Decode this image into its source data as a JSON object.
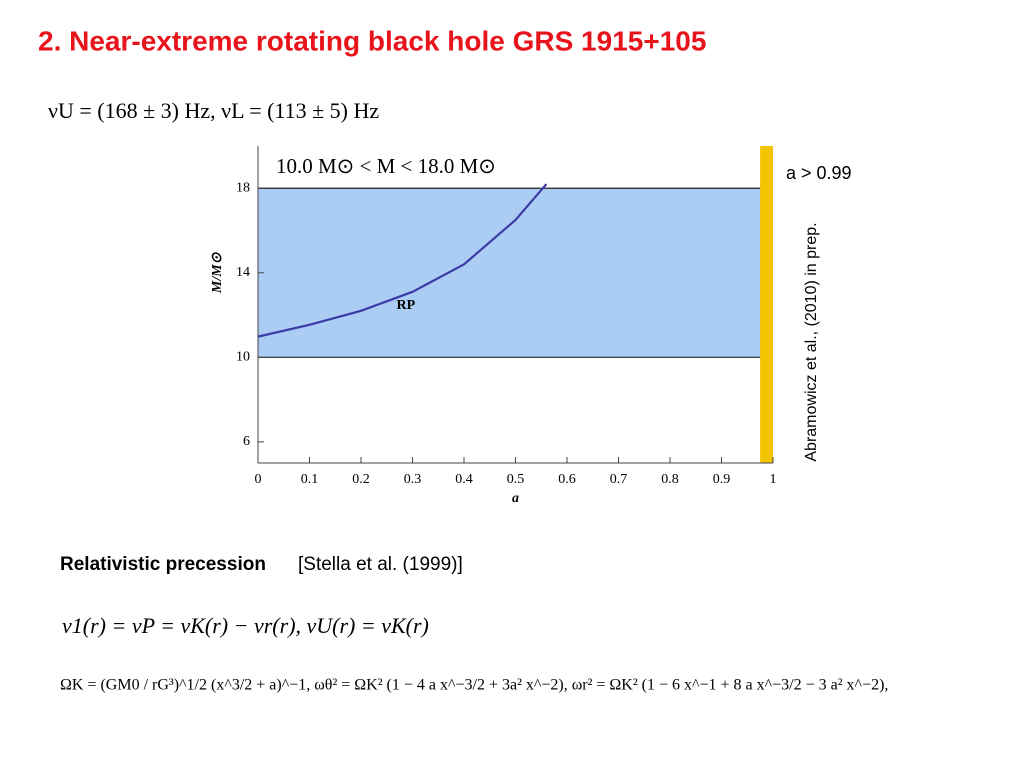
{
  "title": "2. Near-extreme rotating black hole GRS 1915+105",
  "equation_1": "νU = (168 ± 3) Hz,  νL = (113 ± 5) Hz",
  "section_heading": "Relativistic precession",
  "section_reference": "[Stella et al. (1999)]",
  "equation_2": "ν1(r) = νP = νK(r) − νr(r),    νU(r) = νK(r)",
  "equation_3": "ΩK = (GM0 / rG³)^1/2 (x^3/2 + a)^−1,   ωθ² = ΩK² (1 − 4 a x^−3/2 + 3a² x^−2),   ωr² = ΩK² (1 − 6 x^−1 + 8 a x^−3/2 − 3 a² x^−2),",
  "side_label": "a > 0.99",
  "side_reference": "Abramowicz et al., (2010) in prep.",
  "chart_data": {
    "type": "line",
    "legend_text": "10.0 M⊙ < M < 18.0 M⊙",
    "xlabel": "a",
    "ylabel": "M/M⊙",
    "x": [
      0,
      0.1,
      0.2,
      0.3,
      0.4,
      0.5,
      0.56
    ],
    "series": [
      {
        "name": "RP",
        "color": "#3b3ba6",
        "values": [
          10.98,
          11.54,
          12.2,
          13.1,
          14.4,
          16.5,
          18.2
        ]
      }
    ],
    "mass_range": [
      10,
      18
    ],
    "mass_range_color": "#abcdf3",
    "spin_band": [
      0.975,
      1
    ],
    "spin_band_color": "#f5c400",
    "xlim": [
      0,
      1
    ],
    "xticks": [
      0,
      0.1,
      0.2,
      0.3,
      0.4,
      0.5,
      0.6,
      0.7,
      0.8,
      0.9,
      1
    ],
    "ylim": [
      5,
      20
    ],
    "yticks": [
      6,
      10,
      14,
      18
    ]
  }
}
